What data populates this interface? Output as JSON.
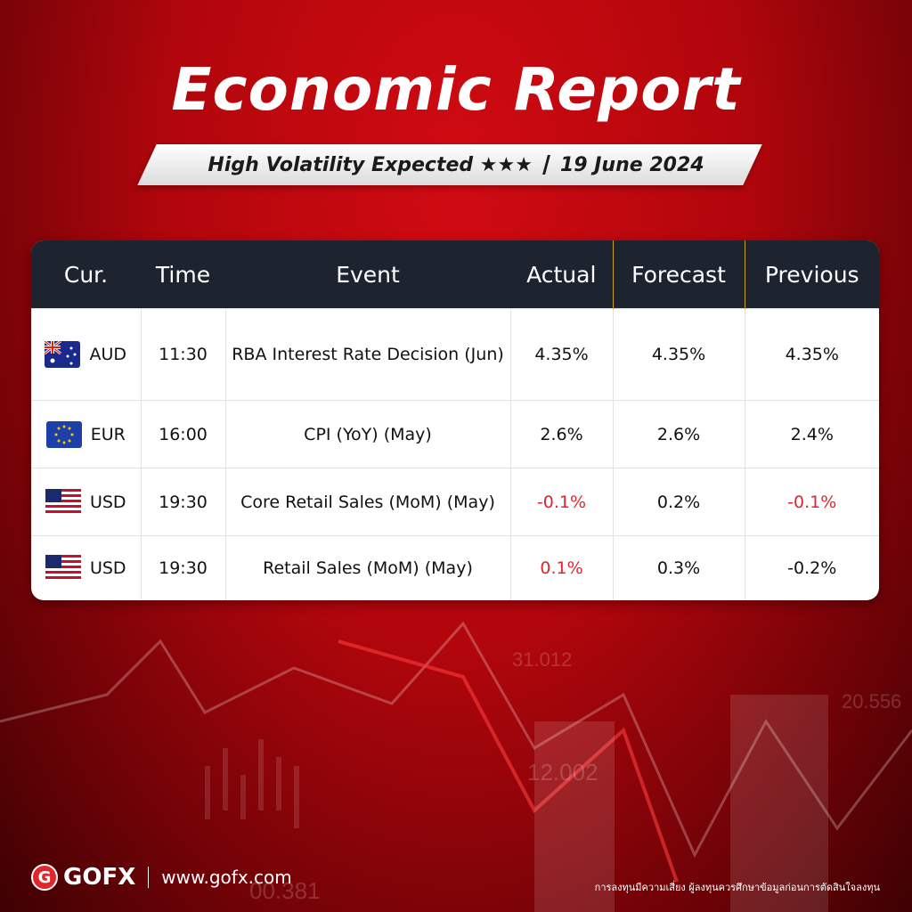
{
  "header": {
    "title": "Economic Report",
    "subtitle": "High Volatility Expected ★★★",
    "date": "19 June 2024"
  },
  "table": {
    "columns": [
      "Cur.",
      "Time",
      "Event",
      "Actual",
      "Forecast",
      "Previous"
    ],
    "highlight_color": "#e0252b",
    "rows": [
      {
        "currency": "AUD",
        "time": "11:30",
        "event": "RBA Interest Rate Decision (Jun)",
        "actual": "4.35%",
        "forecast": "4.35%",
        "previous": "4.35%",
        "highlight": []
      },
      {
        "currency": "EUR",
        "time": "16:00",
        "event": "CPI (YoY) (May)",
        "actual": "2.6%",
        "forecast": "2.6%",
        "previous": "2.4%",
        "highlight": []
      },
      {
        "currency": "USD",
        "time": "19:30",
        "event": "Core Retail Sales (MoM) (May)",
        "actual": "-0.1%",
        "forecast": "0.2%",
        "previous": "-0.1%",
        "highlight": [
          "actual",
          "previous"
        ]
      },
      {
        "currency": "USD",
        "time": "19:30",
        "event": "Retail Sales (MoM) (May)",
        "actual": "0.1%",
        "forecast": "0.3%",
        "previous": "-0.2%",
        "highlight": [
          "actual"
        ]
      }
    ]
  },
  "background_labels": [
    "31.012",
    "12.002",
    "20.556",
    "00.381"
  ],
  "footer": {
    "brand": "GOFX",
    "url": "www.gofx.com",
    "disclaimer": "การลงทุนมีความเสี่ยง ผู้ลงทุนควรศึกษาข้อมูลก่อนการตัดสินใจลงทุน"
  }
}
